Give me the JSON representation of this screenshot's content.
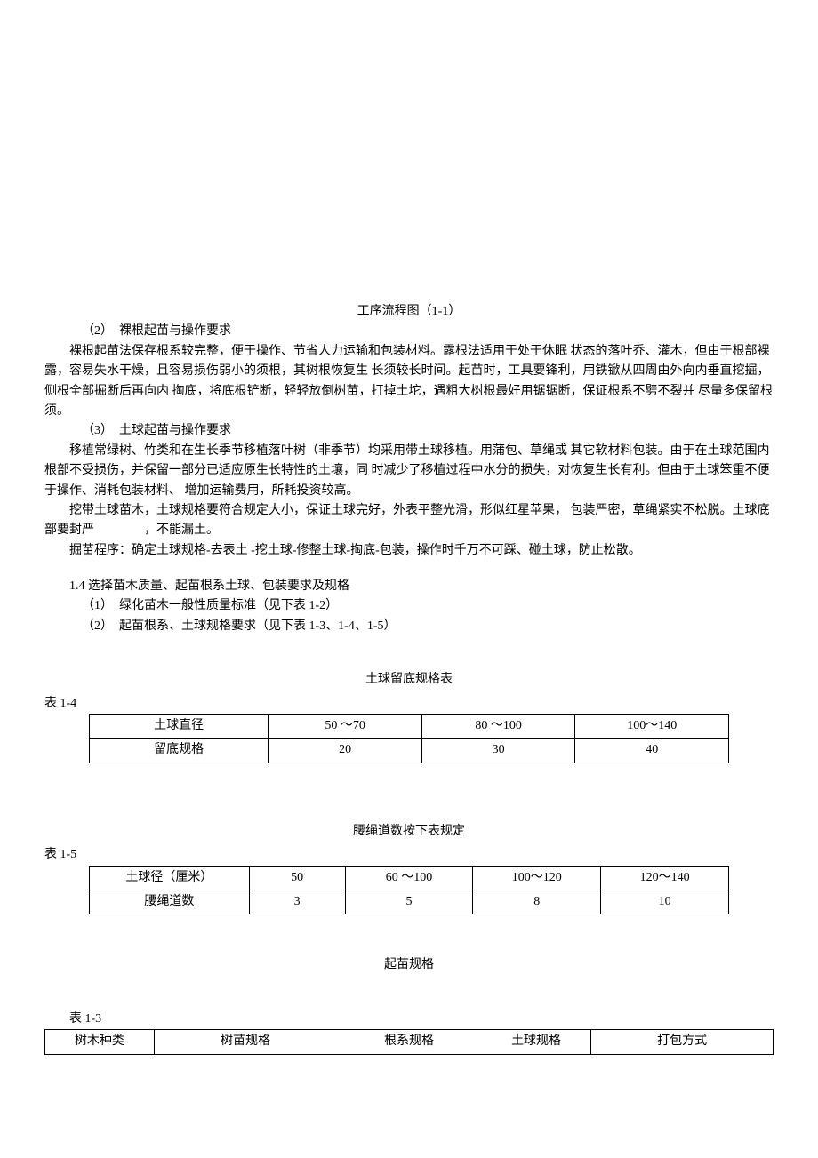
{
  "chart_title": "工序流程图（1-1）",
  "section2_heading": "（2）　裸根起苗与操作要求",
  "para2": "裸根起苗法保存根系较完整，便于操作、节省人力运输和包装材料。露根法适用于处于休眠 状态的落叶乔、灌木，但由于根部裸露，容易失水干燥，且容易损伤弱小的须根，其树根恢复生 长须较长时间。起苗时，工具要锋利，用铁锨从四周由外向内垂直挖掘，侧根全部掘断后再向内 掏底，将底根铲断，轻轻放倒树苗，打掉土坨，遇粗大树根最好用锯锯断，保证根系不劈不裂并 尽量多保留根须。",
  "section3_heading": "（3）　土球起苗与操作要求",
  "para3a": "移植常绿树、竹类和在生长季节移植落叶树（非季节）均采用带土球移植。用蒲包、草绳或 其它软材料包装。由于在土球范围内根部不受损伤，并保留一部分已适应原生长特性的土壤，同 时减少了移植过程中水分的损失，对恢复生长有利。但由于土球笨重不便于操作、消耗包装材料、 增加运输费用，所耗投资较高。",
  "para3b": "挖带土球苗木，土球规格要符合规定大小，保证土球完好，外表平整光滑，形似红星苹果， 包装严密，草绳紧实不松脱。土球底部要封严　　　　，不能漏土。",
  "para3c": "掘苗程序：确定土球规格-去表土 -挖土球-修整土球-掏底-包装，操作时千万不可踩、碰土球，防止松散。",
  "section14_heading": "1.4 选择苗木质量、起苗根系土球、包装要求及规格",
  "section14_item1": "（1）　绿化苗木一般性质量标准（见下表 1-2）",
  "section14_item2": "（2）　起苗根系、土球规格要求（见下表 1-3、1-4、1-5）",
  "table14": {
    "title": "土球留底规格表",
    "label": "表 1-4",
    "rows": [
      {
        "name": "土球直径",
        "c1": "50 ～70",
        "c2": "80 ～100",
        "c3": "100～140"
      },
      {
        "name": "留底规格",
        "c1": "20",
        "c2": "30",
        "c3": "40"
      }
    ],
    "col_widths": [
      "28%",
      "24%",
      "24%",
      "24%"
    ]
  },
  "table15": {
    "title": "腰绳道数按下表规定",
    "label": "表 1-5",
    "rows": [
      {
        "name": "土球径（厘米）",
        "c1": "50",
        "c2": "60 ～100",
        "c3": "100～120",
        "c4": "120～140"
      },
      {
        "name": "腰绳道数",
        "c1": "3",
        "c2": "5",
        "c3": "8",
        "c4": "10"
      }
    ],
    "col_widths": [
      "25%",
      "15%",
      "20%",
      "20%",
      "20%"
    ]
  },
  "table13": {
    "title": "起苗规格",
    "label": "表 1-3",
    "headers": [
      "树木种类",
      "树苗规格",
      "根系规格",
      "土球规格",
      "打包方式"
    ],
    "col_widths": [
      "15%",
      "25%",
      "20%",
      "15%",
      "25%"
    ]
  }
}
